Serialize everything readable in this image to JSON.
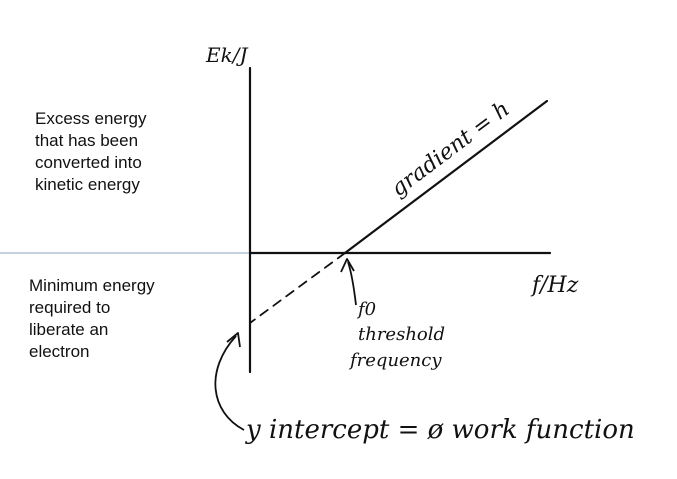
{
  "left_notes": {
    "above_line": "Excess energy\nthat has been\nconverted into\nkinetic energy",
    "below_line": "Minimum energy\nrequired to\nliberate an\nelectron"
  },
  "axes": {
    "y_label": "Ek/J",
    "x_label": "f/Hz"
  },
  "annotations": {
    "gradient": "gradient = h",
    "f0": "f0",
    "threshold_line1": "threshold",
    "threshold_line2": "frequency",
    "y_intercept": "y intercept = ø work function"
  },
  "colors": {
    "divider": "#8aa3bd",
    "ink": "#111111"
  }
}
